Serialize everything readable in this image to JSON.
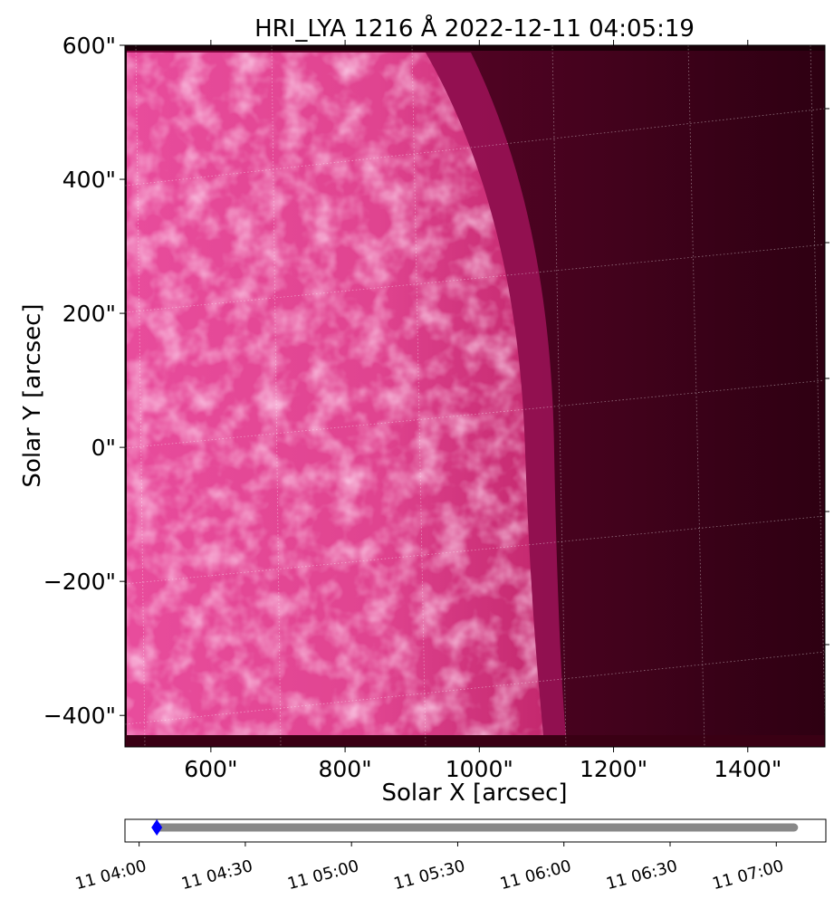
{
  "chart_data": [
    {
      "type": "image",
      "title": "HRI_LYA 1216 Å 2022-12-11 04:05:19",
      "xlabel": "Solar X [arcsec]",
      "ylabel": "Solar Y [arcsec]",
      "xlim": [
        472,
        1515
      ],
      "ylim": [
        -447,
        600
      ],
      "xticks": [
        {
          "value": 600,
          "label": "600\""
        },
        {
          "value": 800,
          "label": "800\""
        },
        {
          "value": 1000,
          "label": "1000\""
        },
        {
          "value": 1200,
          "label": "1200\""
        },
        {
          "value": 1400,
          "label": "1400\""
        }
      ],
      "yticks": [
        {
          "value": -400,
          "label": "−400\""
        },
        {
          "value": -200,
          "label": "−200\""
        },
        {
          "value": 0,
          "label": "0\""
        },
        {
          "value": 200,
          "label": "200\""
        },
        {
          "value": 400,
          "label": "400\""
        },
        {
          "value": 600,
          "label": "600\""
        }
      ]
    },
    {
      "type": "timeline",
      "xlim": [
        "11 03:56",
        "11 07:14"
      ],
      "xticks": [
        "11 04:00",
        "11 04:30",
        "11 05:00",
        "11 05:30",
        "11 06:00",
        "11 06:30",
        "11 07:00"
      ],
      "range": [
        "11 04:05",
        "11 07:05"
      ],
      "range_color": "#888888",
      "current": "11 04:05",
      "current_color": "#0000ff"
    }
  ]
}
